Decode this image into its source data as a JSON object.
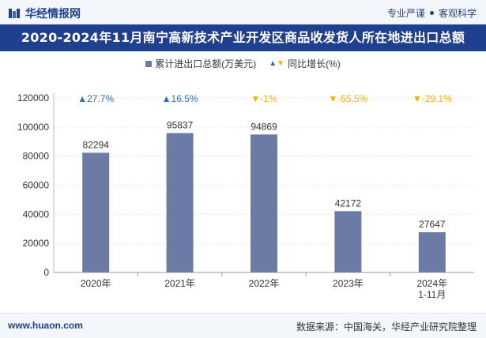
{
  "header": {
    "brand": "华经情报网",
    "slogan_left": "专业严谨",
    "slogan_right": "客观科学"
  },
  "title": "2020-2024年11月南宁高新技术产业开发区商品收发货人所在地进出口总额",
  "legend": {
    "bar_label": "累计进出口总额(万美元)",
    "line_label": "同比增长(%)"
  },
  "footer": {
    "site": "www.huaon.com",
    "source": "数据来源：中国海关，华经产业研究院整理"
  },
  "colors": {
    "bar": "#6b7ba6",
    "up": "#2d6fb4",
    "down": "#f5b300",
    "title_bg": "#1f3f8f"
  },
  "chart_data": {
    "type": "bar",
    "categories": [
      "2020年",
      "2021年",
      "2022年",
      "2023年",
      "2024年\n1-11月"
    ],
    "series": [
      {
        "name": "累计进出口总额(万美元)",
        "values": [
          82294,
          95837,
          94869,
          42172,
          27647
        ]
      }
    ],
    "growth": {
      "name": "同比增长(%)",
      "labels": [
        "27.7%",
        "16.5%",
        "-1%",
        "-55.5%",
        "-29.1%"
      ],
      "directions": [
        "up",
        "up",
        "down",
        "down",
        "down"
      ]
    },
    "yticks": [
      0,
      20000,
      40000,
      60000,
      80000,
      100000,
      120000
    ],
    "ylim": [
      0,
      120000
    ],
    "title": "2020-2024年11月南宁高新技术产业开发区商品收发货人所在地进出口总额",
    "xlabel": "",
    "ylabel": ""
  }
}
